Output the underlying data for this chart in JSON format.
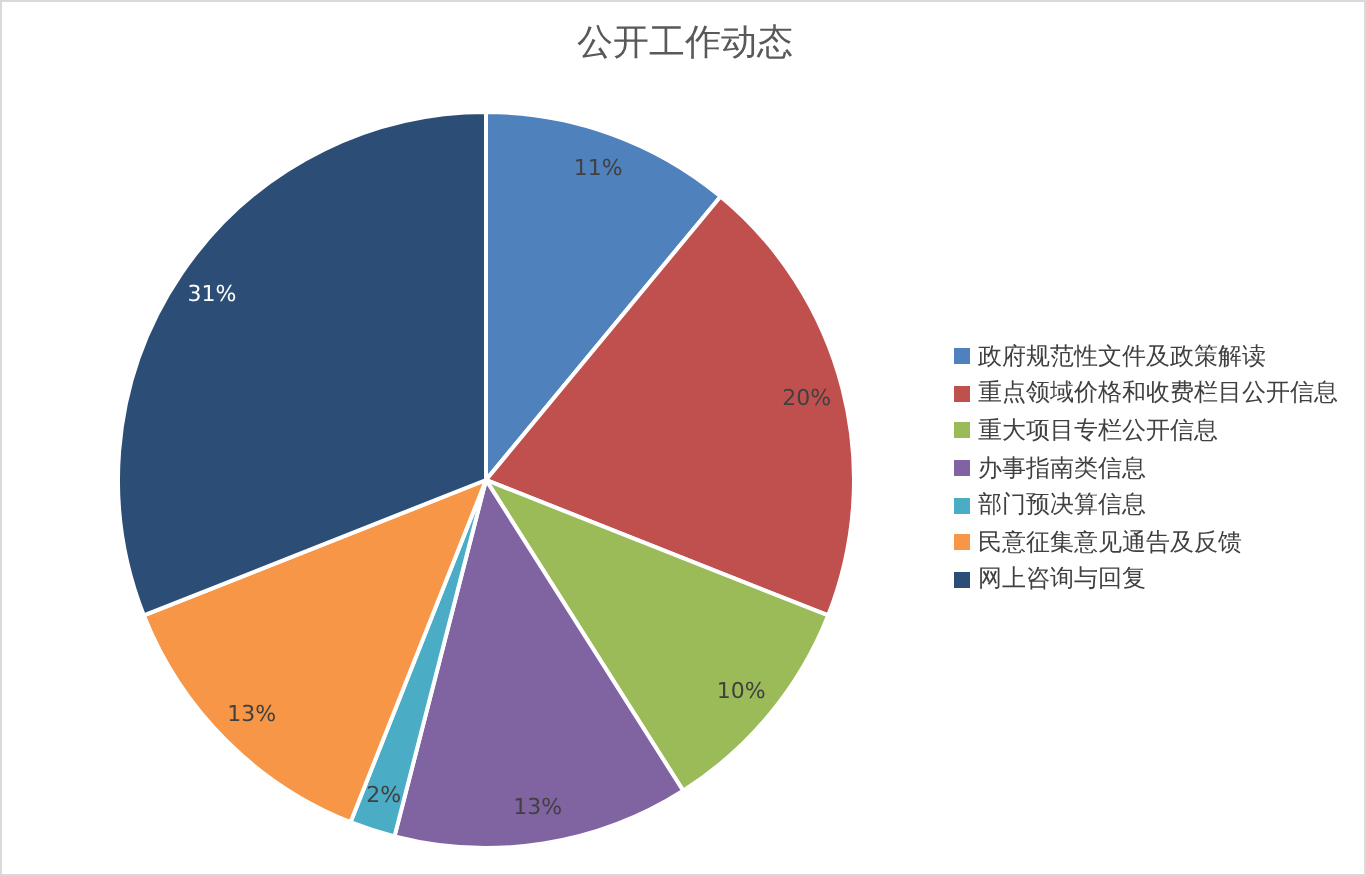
{
  "chart_data": {
    "type": "pie",
    "title": "公开工作动态",
    "categories": [
      "政府规范性文件及政策解读",
      "重点领域价格和收费栏目公开信息",
      "重大项目专栏公开信息",
      "办事指南类信息",
      "部门预决算信息",
      "民意征集意见通告及反馈",
      "网上咨询与回复"
    ],
    "values": [
      11,
      20,
      10,
      13,
      2,
      13,
      31
    ],
    "colors": [
      "#4f81bd",
      "#c0504d",
      "#9bbb59",
      "#8064a2",
      "#4bacc6",
      "#f79646",
      "#2c4d75"
    ],
    "value_labels": [
      "11%",
      "20%",
      "10%",
      "13%",
      "2%",
      "13%",
      "31%"
    ],
    "legend": "right"
  }
}
